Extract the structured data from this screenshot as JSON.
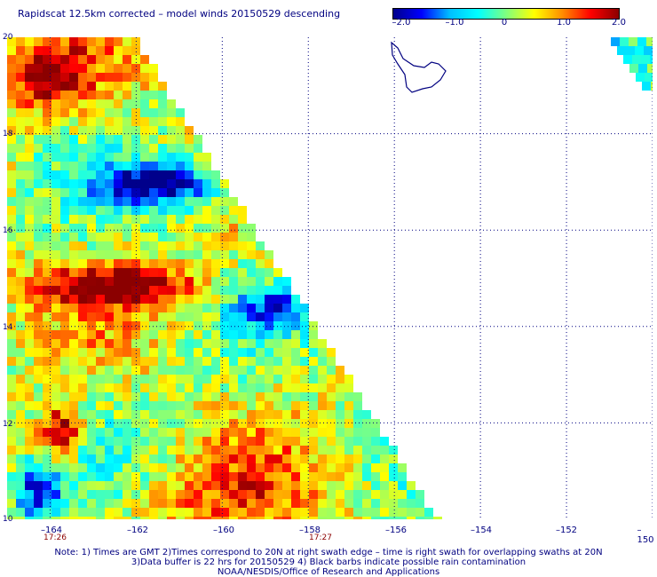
{
  "title": "Rapidscat 12.5km corrected – model winds 20150529 descending",
  "colorbar": {
    "ticks": [
      {
        "label": "–2.0",
        "value": -2.0
      },
      {
        "label": "–1.0",
        "value": -1.0
      },
      {
        "label": "0",
        "value": 0
      },
      {
        "label": "1.0",
        "value": 1.0
      },
      {
        "label": "2.0",
        "value": 2.0
      }
    ],
    "colors": [
      "#00008b",
      "#0000ff",
      "#00bfff",
      "#00ffff",
      "#7fff7f",
      "#ffff00",
      "#ff8c00",
      "#ff0000",
      "#8b0000"
    ]
  },
  "axes": {
    "lat_ticks": [
      "20",
      "18",
      "16",
      "14",
      "12",
      "10"
    ],
    "lon_ticks": [
      "–164",
      "–162",
      "–160",
      "–158",
      "–156",
      "–154",
      "–152",
      "–150"
    ],
    "lat_range": [
      10,
      20
    ],
    "lon_range": [
      -165,
      -150
    ]
  },
  "swath_times": [
    {
      "label": "17:26",
      "lon": -164
    },
    {
      "label": "17:27",
      "lon": -158
    }
  ],
  "notes": {
    "line1": "Note: 1) Times are GMT 2)Times correspond to 20N at right swath edge – time is right swath for overlapping swaths at 20N",
    "line2": "3)Data buffer is 22 hrs for 20150529 4) Black barbs indicate possible rain contamination",
    "line3": "NOAA/NESDIS/Office of Research and Applications"
  }
}
